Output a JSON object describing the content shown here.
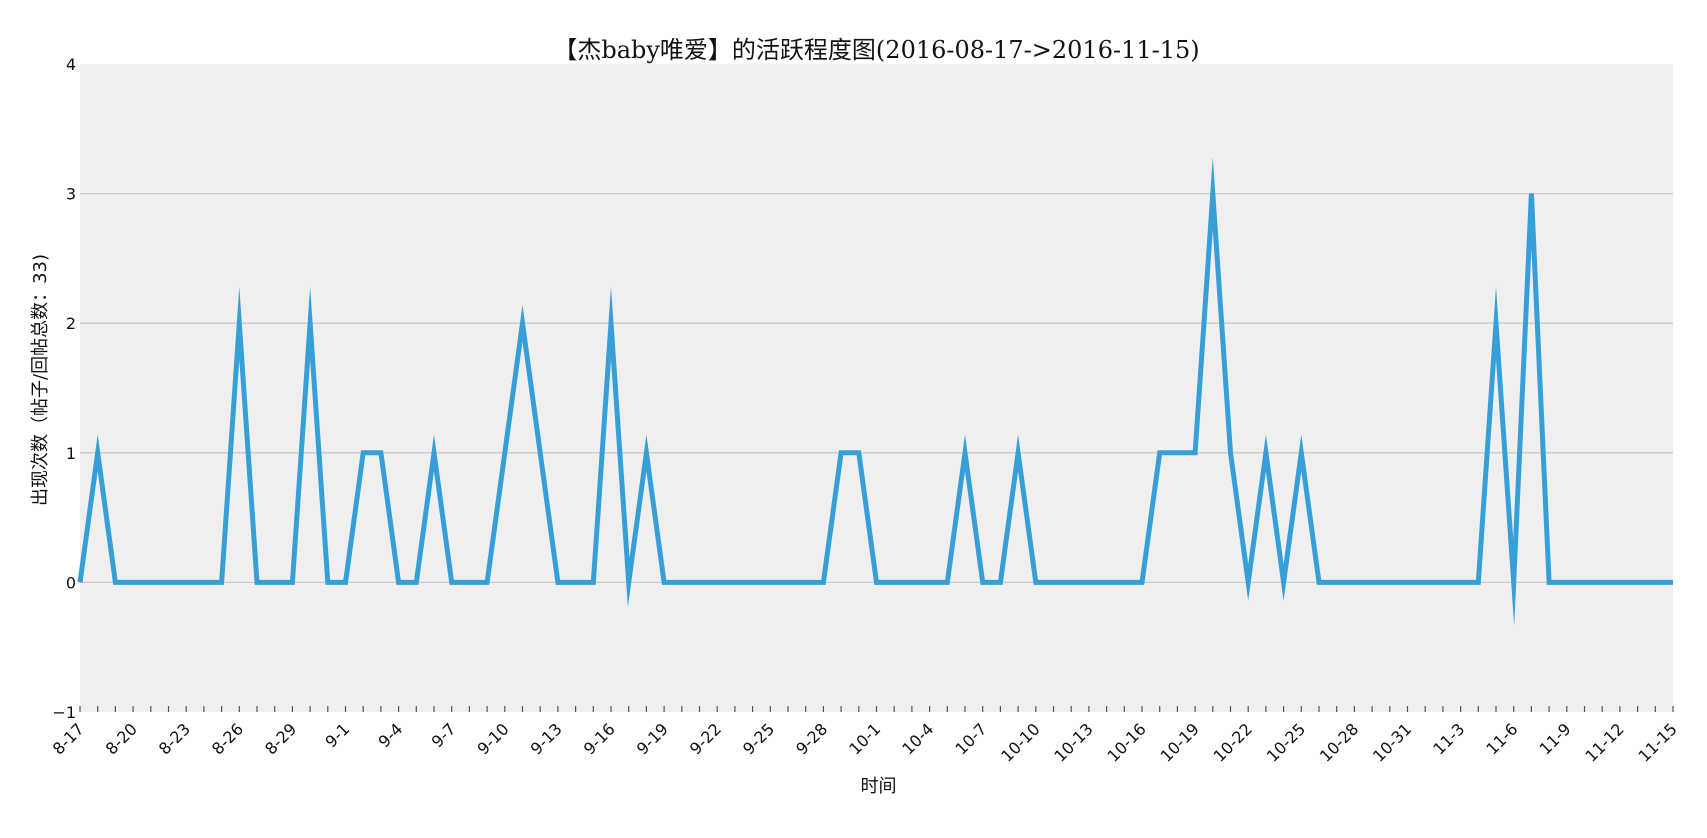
{
  "chart_data": {
    "type": "line",
    "title": "【杰baby唯爱】的活跃程度图(2016-08-17->2016-11-15)",
    "xlabel": "时间",
    "ylabel": "出现次数（帖子/回帖总数：33)",
    "ylim": [
      -1,
      4
    ],
    "yticks": [
      "−1",
      "0",
      "1",
      "2",
      "3",
      "4"
    ],
    "grid": true,
    "x_tick_labels": [
      "8-17",
      "8-20",
      "8-23",
      "8-26",
      "8-29",
      "9-1",
      "9-4",
      "9-7",
      "9-10",
      "9-13",
      "9-16",
      "9-19",
      "9-22",
      "9-25",
      "9-28",
      "10-1",
      "10-4",
      "10-7",
      "10-10",
      "10-13",
      "10-16",
      "10-19",
      "10-22",
      "10-25",
      "10-28",
      "10-31",
      "11-3",
      "11-6",
      "11-9",
      "11-12",
      "11-15"
    ],
    "x": [
      "8-17",
      "8-18",
      "8-19",
      "8-20",
      "8-21",
      "8-22",
      "8-23",
      "8-24",
      "8-25",
      "8-26",
      "8-27",
      "8-28",
      "8-29",
      "8-30",
      "8-31",
      "9-1",
      "9-2",
      "9-3",
      "9-4",
      "9-5",
      "9-6",
      "9-7",
      "9-8",
      "9-9",
      "9-10",
      "9-11",
      "9-12",
      "9-13",
      "9-14",
      "9-15",
      "9-16",
      "9-17",
      "9-18",
      "9-19",
      "9-20",
      "9-21",
      "9-22",
      "9-23",
      "9-24",
      "9-25",
      "9-26",
      "9-27",
      "9-28",
      "9-29",
      "9-30",
      "10-1",
      "10-2",
      "10-3",
      "10-4",
      "10-5",
      "10-6",
      "10-7",
      "10-8",
      "10-9",
      "10-10",
      "10-11",
      "10-12",
      "10-13",
      "10-14",
      "10-15",
      "10-16",
      "10-17",
      "10-18",
      "10-19",
      "10-20",
      "10-21",
      "10-22",
      "10-23",
      "10-24",
      "10-25",
      "10-26",
      "10-27",
      "10-28",
      "10-29",
      "10-30",
      "10-31",
      "11-1",
      "11-2",
      "11-3",
      "11-4",
      "11-5",
      "11-6",
      "11-7",
      "11-8",
      "11-9",
      "11-10",
      "11-11",
      "11-12",
      "11-13",
      "11-14",
      "11-15"
    ],
    "series": [
      {
        "color": "#379fd7",
        "values": [
          0,
          1,
          0,
          0,
          0,
          0,
          0,
          0,
          0,
          2,
          0,
          0,
          0,
          2,
          0,
          0,
          1,
          1,
          0,
          0,
          1,
          0,
          0,
          0,
          1,
          2,
          1,
          0,
          0,
          0,
          2,
          0,
          1,
          0,
          0,
          0,
          0,
          0,
          0,
          0,
          0,
          0,
          0,
          1,
          1,
          0,
          0,
          0,
          0,
          0,
          1,
          0,
          0,
          1,
          0,
          0,
          0,
          0,
          0,
          0,
          0,
          1,
          1,
          1,
          3,
          1,
          0,
          1,
          0,
          1,
          0,
          0,
          0,
          0,
          0,
          0,
          0,
          0,
          0,
          0,
          2,
          0,
          3,
          0,
          0,
          0,
          0,
          0,
          0,
          0,
          0
        ]
      }
    ]
  },
  "colors": {
    "plot_background": "#efefef",
    "grid": "#cbcbcb",
    "line": "#379fd7"
  }
}
